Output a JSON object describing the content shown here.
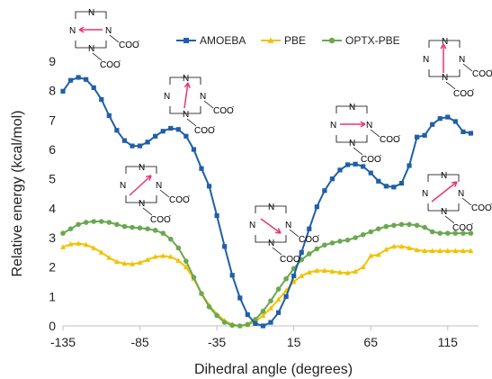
{
  "chart_data": {
    "type": "line",
    "xlabel": "Dihedral angle (degrees)",
    "ylabel": "Relative energy (kcal/mol)",
    "xlim": [
      -135,
      135
    ],
    "ylim": [
      0,
      9
    ],
    "xticks": [
      -135,
      -85,
      -35,
      15,
      65,
      115
    ],
    "yticks": [
      0,
      1,
      2,
      3,
      4,
      5,
      6,
      7,
      8,
      9
    ],
    "grid": false,
    "legend_position": "top",
    "x": [
      -135,
      -130,
      -125,
      -120,
      -115,
      -110,
      -105,
      -100,
      -95,
      -90,
      -85,
      -80,
      -75,
      -70,
      -65,
      -60,
      -55,
      -50,
      -45,
      -40,
      -35,
      -30,
      -25,
      -20,
      -15,
      -10,
      -5,
      0,
      5,
      10,
      15,
      20,
      25,
      30,
      35,
      40,
      45,
      50,
      55,
      60,
      65,
      70,
      75,
      80,
      85,
      90,
      95,
      100,
      105,
      110,
      115,
      120,
      125,
      130
    ],
    "series": [
      {
        "name": "AMOEBA",
        "color": "#1f5fa8",
        "marker": "square",
        "values": [
          7.98,
          8.35,
          8.45,
          8.38,
          8.1,
          7.7,
          7.15,
          6.65,
          6.3,
          6.12,
          6.12,
          6.25,
          6.45,
          6.62,
          6.72,
          6.68,
          6.45,
          6.0,
          5.35,
          4.75,
          3.75,
          2.7,
          1.72,
          0.95,
          0.38,
          0.08,
          0.0,
          0.12,
          0.45,
          1.0,
          1.7,
          2.5,
          3.3,
          4.05,
          4.6,
          5.0,
          5.3,
          5.48,
          5.5,
          5.42,
          5.2,
          4.92,
          4.75,
          4.72,
          4.85,
          5.45,
          6.42,
          6.48,
          6.85,
          7.05,
          7.1,
          6.95,
          6.6,
          6.55
        ]
      },
      {
        "name": "PBE",
        "color": "#f2c200",
        "marker": "triangle",
        "values": [
          2.68,
          2.78,
          2.8,
          2.76,
          2.65,
          2.5,
          2.32,
          2.18,
          2.12,
          2.1,
          2.15,
          2.25,
          2.35,
          2.38,
          2.35,
          2.22,
          2.0,
          1.6,
          1.1,
          0.7,
          0.4,
          0.18,
          0.05,
          0.0,
          0.03,
          0.15,
          0.35,
          0.6,
          0.9,
          1.2,
          1.5,
          1.7,
          1.82,
          1.88,
          1.88,
          1.85,
          1.82,
          1.8,
          1.85,
          2.0,
          2.38,
          2.42,
          2.6,
          2.7,
          2.7,
          2.65,
          2.58,
          2.55,
          2.55,
          2.55,
          2.55,
          2.55,
          2.55,
          2.55
        ]
      },
      {
        "name": "OPTX-PBE",
        "color": "#6aa84f",
        "marker": "circle",
        "values": [
          3.15,
          3.3,
          3.45,
          3.52,
          3.55,
          3.55,
          3.52,
          3.45,
          3.38,
          3.35,
          3.33,
          3.3,
          3.25,
          3.15,
          2.95,
          2.65,
          2.2,
          1.65,
          1.1,
          0.65,
          0.35,
          0.12,
          0.02,
          0.0,
          0.05,
          0.22,
          0.5,
          0.85,
          1.25,
          1.6,
          1.95,
          2.25,
          2.45,
          2.62,
          2.75,
          2.82,
          2.88,
          2.92,
          3.0,
          3.1,
          3.2,
          3.3,
          3.38,
          3.42,
          3.45,
          3.45,
          3.42,
          3.35,
          3.2,
          3.15,
          3.15,
          3.15,
          3.15,
          3.15
        ]
      }
    ]
  },
  "molecules": [
    {
      "n1": "N",
      "n2": "N",
      "n3": "N",
      "n4": "N",
      "coo1": "COO",
      "coo2": "COO",
      "sup": "-"
    },
    {
      "n1": "N",
      "n2": "N",
      "n3": "N",
      "n4": "N",
      "coo1": "COO",
      "coo2": "COO",
      "sup": "-"
    },
    {
      "n1": "N",
      "n2": "N",
      "n3": "N",
      "n4": "N",
      "coo1": "COO",
      "coo2": "COO",
      "sup": "-"
    },
    {
      "n1": "N",
      "n2": "N",
      "n3": "N",
      "n4": "N",
      "coo1": "COO",
      "coo2": "COO",
      "sup": "-"
    },
    {
      "n1": "N",
      "n2": "N",
      "n3": "N",
      "n4": "N",
      "coo1": "COO",
      "coo2": "COO",
      "sup": "-"
    },
    {
      "n1": "N",
      "n2": "N",
      "n3": "N",
      "n4": "N",
      "coo1": "COO",
      "coo2": "COO",
      "sup": "-"
    },
    {
      "n1": "N",
      "n2": "N",
      "n3": "N",
      "n4": "N",
      "coo1": "COO",
      "coo2": "COO",
      "sup": "-"
    }
  ],
  "colors": {
    "arrow": "#e8347a",
    "axis": "#bfbfbf",
    "text": "#222222"
  }
}
